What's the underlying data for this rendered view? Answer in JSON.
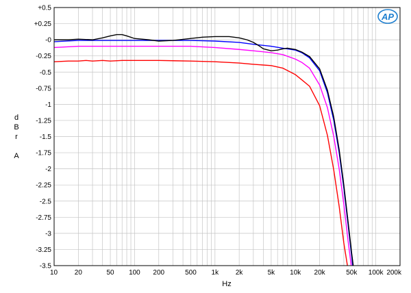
{
  "logo": {
    "text": "AP",
    "color": "#1e7fcf"
  },
  "chart_data": {
    "type": "line",
    "xlabel": "Hz",
    "ylabel": [
      "d",
      "B",
      "r",
      "",
      "A"
    ],
    "x_scale": "log",
    "xlim": [
      10,
      200000
    ],
    "ylim": [
      -3.5,
      0.5
    ],
    "grid": true,
    "x_ticks": [
      {
        "value": 10,
        "label": "10"
      },
      {
        "value": 20,
        "label": "20"
      },
      {
        "value": 50,
        "label": "50"
      },
      {
        "value": 100,
        "label": "100"
      },
      {
        "value": 200,
        "label": "200"
      },
      {
        "value": 500,
        "label": "500"
      },
      {
        "value": 1000,
        "label": "1k"
      },
      {
        "value": 2000,
        "label": "2k"
      },
      {
        "value": 5000,
        "label": "5k"
      },
      {
        "value": 10000,
        "label": "10k"
      },
      {
        "value": 20000,
        "label": "20k"
      },
      {
        "value": 50000,
        "label": "50k"
      },
      {
        "value": 100000,
        "label": "100k"
      },
      {
        "value": 200000,
        "label": "200k"
      }
    ],
    "y_ticks": [
      {
        "value": 0.5,
        "label": "+0.5"
      },
      {
        "value": 0.25,
        "label": "+0.25"
      },
      {
        "value": 0,
        "label": "-0"
      },
      {
        "value": -0.25,
        "label": "-0.25"
      },
      {
        "value": -0.5,
        "label": "-0.5"
      },
      {
        "value": -0.75,
        "label": "-0.75"
      },
      {
        "value": -1,
        "label": "-1"
      },
      {
        "value": -1.25,
        "label": "-1.25"
      },
      {
        "value": -1.5,
        "label": "-1.5"
      },
      {
        "value": -1.75,
        "label": "-1.75"
      },
      {
        "value": -2,
        "label": "-2"
      },
      {
        "value": -2.25,
        "label": "-2.25"
      },
      {
        "value": -2.5,
        "label": "-2.5"
      },
      {
        "value": -2.75,
        "label": "-2.75"
      },
      {
        "value": -3,
        "label": "-3"
      },
      {
        "value": -3.25,
        "label": "-3.25"
      },
      {
        "value": -3.5,
        "label": "-3.5"
      }
    ],
    "series": [
      {
        "color": "#ff0000",
        "x": [
          10,
          15,
          20,
          25,
          30,
          40,
          50,
          70,
          100,
          200,
          500,
          1000,
          2000,
          3000,
          5000,
          7000,
          10000,
          12000,
          15000,
          20000,
          25000,
          30000,
          35000,
          40000,
          45000
        ],
        "y": [
          -0.34,
          -0.33,
          -0.33,
          -0.32,
          -0.33,
          -0.32,
          -0.33,
          -0.32,
          -0.32,
          -0.32,
          -0.33,
          -0.34,
          -0.36,
          -0.38,
          -0.4,
          -0.44,
          -0.54,
          -0.62,
          -0.72,
          -1.02,
          -1.48,
          -2.02,
          -2.58,
          -3.15,
          -3.55
        ]
      },
      {
        "color": "#ff00ff",
        "x": [
          10,
          20,
          50,
          100,
          200,
          500,
          1000,
          2000,
          3000,
          5000,
          7000,
          10000,
          12000,
          15000,
          20000,
          25000,
          30000,
          35000,
          40000,
          45000,
          50000
        ],
        "y": [
          -0.12,
          -0.1,
          -0.1,
          -0.1,
          -0.1,
          -0.1,
          -0.12,
          -0.15,
          -0.17,
          -0.2,
          -0.23,
          -0.3,
          -0.35,
          -0.44,
          -0.7,
          -1.05,
          -1.5,
          -2.0,
          -2.55,
          -3.1,
          -3.55
        ]
      },
      {
        "color": "#0000ff",
        "x": [
          10,
          20,
          50,
          100,
          200,
          500,
          1000,
          2000,
          3000,
          5000,
          7000,
          10000,
          12000,
          15000,
          20000,
          25000,
          30000,
          35000,
          40000,
          45000,
          50000,
          52000
        ],
        "y": [
          -0.03,
          -0.01,
          -0.01,
          -0.01,
          -0.01,
          -0.01,
          -0.02,
          -0.04,
          -0.07,
          -0.1,
          -0.13,
          -0.16,
          -0.2,
          -0.28,
          -0.48,
          -0.82,
          -1.25,
          -1.75,
          -2.3,
          -2.85,
          -3.35,
          -3.55
        ]
      },
      {
        "color": "#000000",
        "x": [
          10,
          15,
          20,
          30,
          40,
          50,
          60,
          70,
          80,
          100,
          150,
          200,
          300,
          500,
          700,
          1000,
          1500,
          2000,
          2500,
          3000,
          3500,
          4000,
          5000,
          6000,
          7000,
          8000,
          10000,
          12000,
          15000,
          20000,
          25000,
          30000,
          35000,
          40000,
          45000,
          50000,
          53000
        ],
        "y": [
          0.0,
          0.0,
          0.01,
          0.0,
          0.03,
          0.06,
          0.08,
          0.08,
          0.06,
          0.02,
          0.0,
          -0.02,
          -0.01,
          0.02,
          0.04,
          0.05,
          0.05,
          0.03,
          0.0,
          -0.04,
          -0.09,
          -0.14,
          -0.17,
          -0.16,
          -0.14,
          -0.13,
          -0.15,
          -0.19,
          -0.26,
          -0.45,
          -0.78,
          -1.2,
          -1.7,
          -2.25,
          -2.8,
          -3.3,
          -3.55
        ]
      }
    ]
  }
}
